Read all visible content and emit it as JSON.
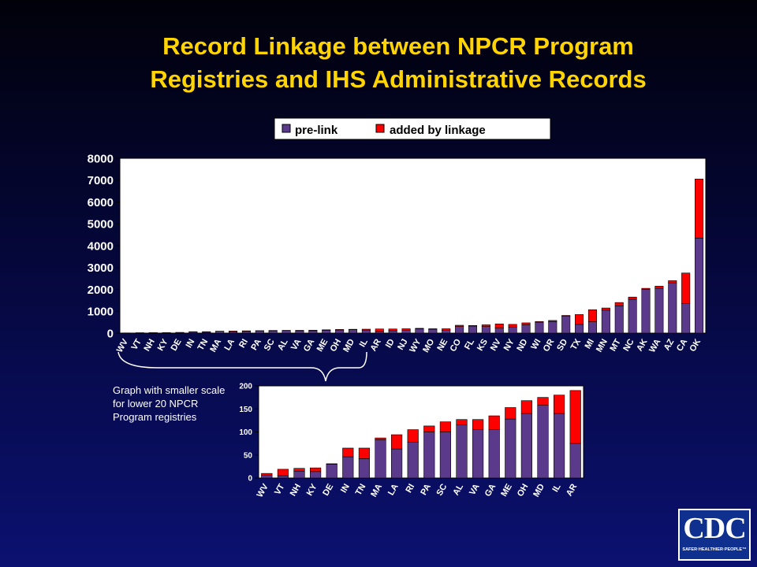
{
  "title": {
    "line1": "Record Linkage between NPCR Program",
    "line2": "Registries and IHS Administrative Records"
  },
  "note": "Graph with smaller scale for lower 20 NPCR Program registries",
  "logo": {
    "text": "CDC",
    "tagline": "SAFER·HEALTHIER·PEOPLE™"
  },
  "colors": {
    "prelink": "#5b3a8c",
    "added": "#ff0000",
    "title": "#ffd400",
    "chart_bg": "#ffffff"
  },
  "chart_data": [
    {
      "type": "bar",
      "stacked": true,
      "legend_position": "top",
      "grid": false,
      "categories": [
        "WV",
        "VT",
        "NH",
        "KY",
        "DE",
        "IN",
        "TN",
        "MA",
        "LA",
        "RI",
        "PA",
        "SC",
        "AL",
        "VA",
        "GA",
        "ME",
        "OH",
        "MD",
        "IL",
        "AR",
        "ID",
        "NJ",
        "WY",
        "MO",
        "NE",
        "CO",
        "FL",
        "KS",
        "NV",
        "NY",
        "ND",
        "WI",
        "OR",
        "SD",
        "TX",
        "MI",
        "MN",
        "MT",
        "NC",
        "AK",
        "WA",
        "AZ",
        "CA",
        "OK"
      ],
      "series": [
        {
          "name": "pre-link",
          "values": [
            6,
            5,
            15,
            14,
            30,
            46,
            42,
            83,
            63,
            78,
            100,
            100,
            115,
            105,
            105,
            128,
            140,
            158,
            140,
            75,
            110,
            130,
            200,
            180,
            120,
            300,
            320,
            300,
            230,
            280,
            380,
            500,
            530,
            770,
            400,
            520,
            1050,
            1250,
            1550,
            2000,
            2050,
            2300,
            1350,
            4350
          ]
        },
        {
          "name": "added by linkage",
          "values": [
            4,
            14,
            6,
            8,
            1,
            19,
            23,
            4,
            31,
            27,
            13,
            22,
            12,
            22,
            30,
            25,
            28,
            17,
            40,
            115,
            80,
            70,
            20,
            20,
            80,
            60,
            30,
            80,
            190,
            120,
            90,
            30,
            50,
            40,
            450,
            550,
            100,
            150,
            100,
            50,
            100,
            100,
            1400,
            2700
          ]
        }
      ],
      "ylim": [
        0,
        8000
      ],
      "yticks": [
        0,
        1000,
        2000,
        3000,
        4000,
        5000,
        6000,
        7000,
        8000
      ],
      "xlabel": "",
      "ylabel": ""
    },
    {
      "type": "bar",
      "stacked": true,
      "grid": false,
      "categories": [
        "WV",
        "VT",
        "NH",
        "KY",
        "DE",
        "IN",
        "TN",
        "MA",
        "LA",
        "RI",
        "PA",
        "SC",
        "AL",
        "VA",
        "GA",
        "ME",
        "OH",
        "MD",
        "IL",
        "AR"
      ],
      "series": [
        {
          "name": "pre-link",
          "values": [
            6,
            5,
            15,
            14,
            30,
            46,
            42,
            83,
            63,
            78,
            100,
            100,
            115,
            105,
            105,
            128,
            140,
            158,
            140,
            75
          ]
        },
        {
          "name": "added by linkage",
          "values": [
            4,
            14,
            6,
            8,
            1,
            19,
            23,
            4,
            31,
            27,
            13,
            22,
            12,
            22,
            30,
            25,
            28,
            17,
            40,
            115
          ]
        }
      ],
      "ylim": [
        0,
        200
      ],
      "yticks": [
        0,
        50,
        100,
        150,
        200
      ],
      "xlabel": "",
      "ylabel": ""
    }
  ]
}
